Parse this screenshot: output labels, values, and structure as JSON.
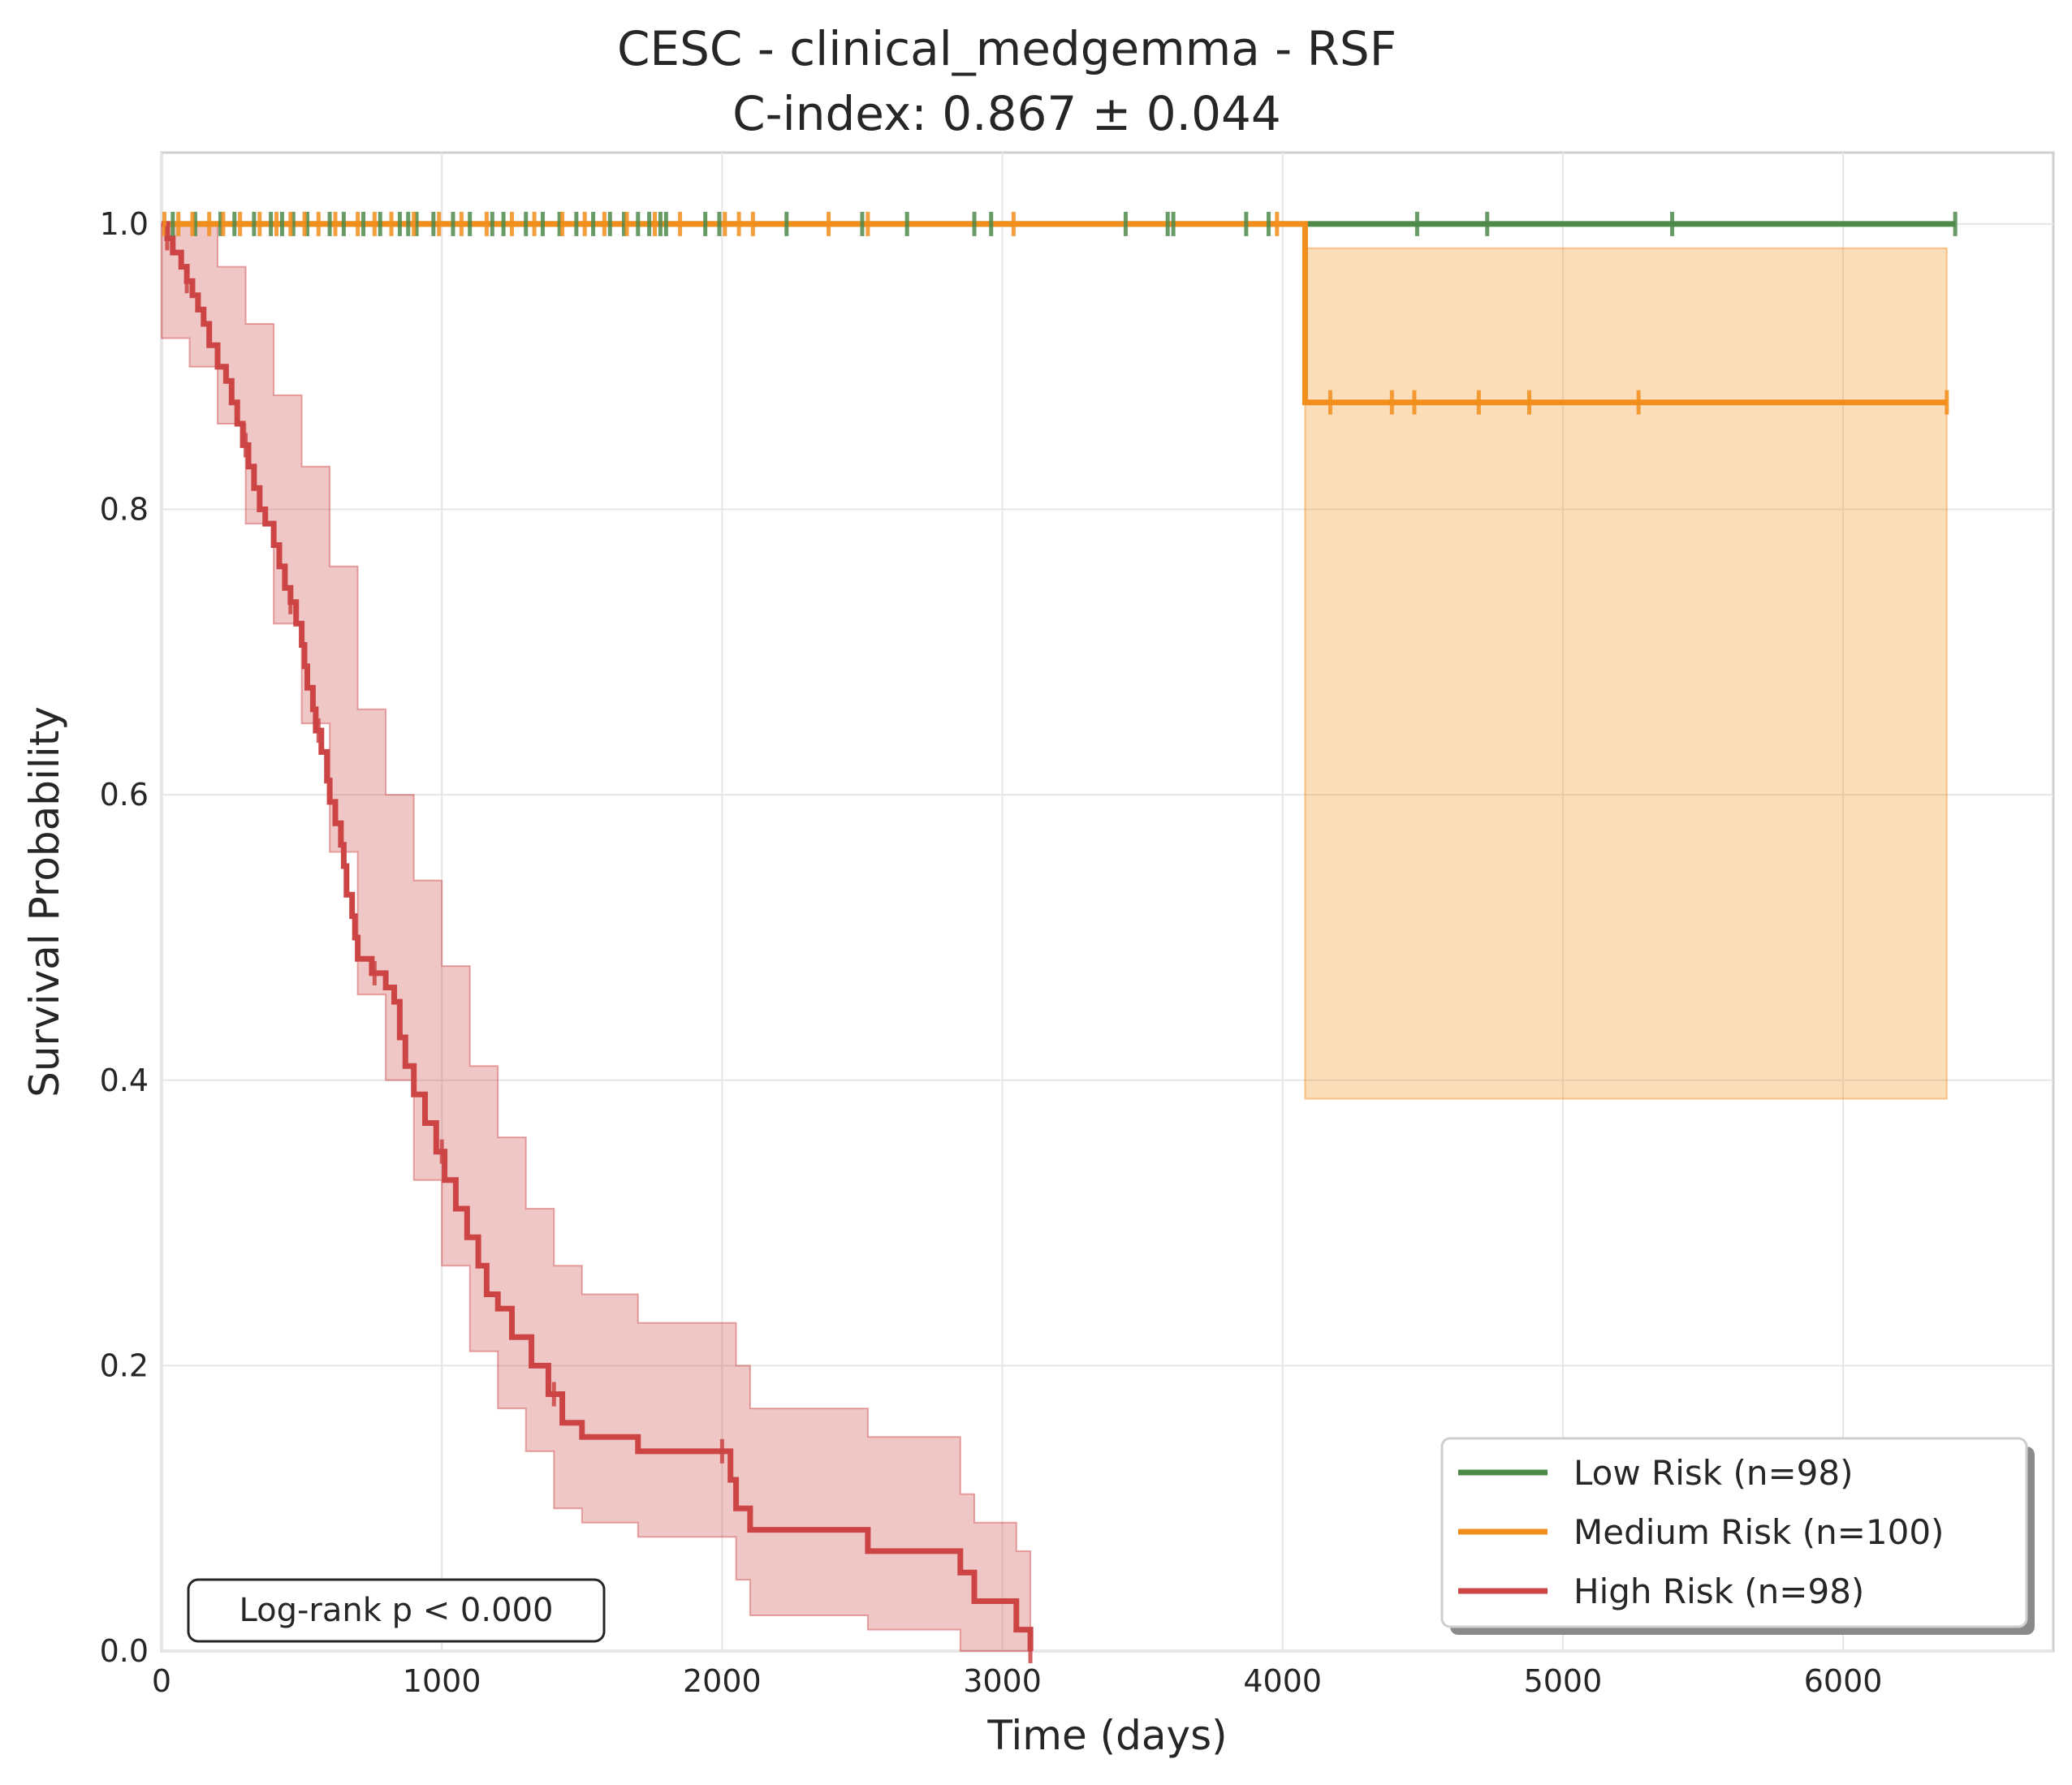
{
  "chart_data": {
    "type": "line",
    "subtype": "kaplan-meier",
    "title": "CESC - clinical_medgemma - RSF",
    "subtitle": "C-index: 0.867 ± 0.044",
    "xlabel": "Time (days)",
    "ylabel": "Survival Probability",
    "xlim": [
      0,
      6750
    ],
    "ylim": [
      0,
      1.05
    ],
    "xticks": [
      0,
      1000,
      2000,
      3000,
      4000,
      5000,
      6000
    ],
    "xtick_labels": [
      "0",
      "1000",
      "2000",
      "3000",
      "4000",
      "5000",
      "6000"
    ],
    "yticks": [
      0.0,
      0.2,
      0.4,
      0.6,
      0.8,
      1.0
    ],
    "ytick_labels": [
      "0.0",
      "0.2",
      "0.4",
      "0.6",
      "0.8",
      "1.0"
    ],
    "grid": true,
    "legend_position": "lower-right",
    "annotation": "Log-rank p < 0.000",
    "series": [
      {
        "name": "Low Risk (n=98)",
        "color": "#4d8a4a",
        "steps": [
          [
            0,
            1.0
          ],
          [
            6400,
            1.0
          ]
        ],
        "ci_lower": [],
        "ci_upper": [],
        "censor_times": [
          40,
          120,
          210,
          260,
          330,
          390,
          430,
          470,
          520,
          600,
          650,
          720,
          780,
          850,
          880,
          910,
          970,
          1040,
          1100,
          1180,
          1220,
          1300,
          1360,
          1420,
          1480,
          1540,
          1600,
          1650,
          1700,
          1740,
          1780,
          1800,
          1940,
          1990,
          2230,
          2500,
          2660,
          2900,
          2960,
          3440,
          3590,
          3610,
          3870,
          3950,
          4480,
          4730,
          5390,
          6400
        ]
      },
      {
        "name": "Medium Risk (n=100)",
        "color": "#f28e1c",
        "steps": [
          [
            0,
            1.0
          ],
          [
            4080,
            1.0
          ],
          [
            4080,
            0.875
          ],
          [
            6370,
            0.875
          ]
        ],
        "ci_lower": [
          [
            4080,
            0.387
          ],
          [
            6370,
            0.387
          ]
        ],
        "ci_upper": [
          [
            4080,
            0.983
          ],
          [
            6370,
            0.983
          ]
        ],
        "censor_times": [
          10,
          60,
          110,
          170,
          220,
          280,
          350,
          410,
          460,
          510,
          560,
          620,
          700,
          760,
          820,
          900,
          990,
          1070,
          1160,
          1250,
          1330,
          1430,
          1510,
          1580,
          1660,
          1760,
          1850,
          2010,
          2060,
          2110,
          2380,
          2520,
          3040,
          3980,
          4170,
          4390,
          4470,
          4700,
          4880,
          5270,
          6370
        ]
      },
      {
        "name": "High Risk (n=98)",
        "color": "#cc4444",
        "steps": [
          [
            0,
            1.0
          ],
          [
            20,
            0.99
          ],
          [
            40,
            0.98
          ],
          [
            70,
            0.97
          ],
          [
            90,
            0.96
          ],
          [
            110,
            0.95
          ],
          [
            130,
            0.94
          ],
          [
            150,
            0.93
          ],
          [
            170,
            0.915
          ],
          [
            200,
            0.9
          ],
          [
            230,
            0.89
          ],
          [
            250,
            0.875
          ],
          [
            270,
            0.86
          ],
          [
            290,
            0.845
          ],
          [
            310,
            0.83
          ],
          [
            330,
            0.815
          ],
          [
            350,
            0.8
          ],
          [
            370,
            0.79
          ],
          [
            400,
            0.775
          ],
          [
            420,
            0.76
          ],
          [
            440,
            0.745
          ],
          [
            460,
            0.735
          ],
          [
            480,
            0.72
          ],
          [
            500,
            0.705
          ],
          [
            510,
            0.69
          ],
          [
            520,
            0.675
          ],
          [
            540,
            0.66
          ],
          [
            550,
            0.645
          ],
          [
            570,
            0.63
          ],
          [
            590,
            0.61
          ],
          [
            600,
            0.595
          ],
          [
            620,
            0.58
          ],
          [
            640,
            0.565
          ],
          [
            650,
            0.55
          ],
          [
            660,
            0.53
          ],
          [
            680,
            0.515
          ],
          [
            690,
            0.5
          ],
          [
            700,
            0.485
          ],
          [
            750,
            0.475
          ],
          [
            800,
            0.465
          ],
          [
            830,
            0.455
          ],
          [
            850,
            0.43
          ],
          [
            870,
            0.41
          ],
          [
            900,
            0.39
          ],
          [
            940,
            0.37
          ],
          [
            980,
            0.35
          ],
          [
            1010,
            0.33
          ],
          [
            1050,
            0.31
          ],
          [
            1090,
            0.29
          ],
          [
            1130,
            0.27
          ],
          [
            1160,
            0.25
          ],
          [
            1200,
            0.24
          ],
          [
            1250,
            0.22
          ],
          [
            1320,
            0.2
          ],
          [
            1380,
            0.18
          ],
          [
            1430,
            0.16
          ],
          [
            1500,
            0.15
          ],
          [
            1700,
            0.14
          ],
          [
            2030,
            0.12
          ],
          [
            2050,
            0.1
          ],
          [
            2100,
            0.085
          ],
          [
            2520,
            0.07
          ],
          [
            2850,
            0.055
          ],
          [
            2900,
            0.035
          ],
          [
            3050,
            0.015
          ],
          [
            3100,
            0.0
          ]
        ],
        "ci_lower": [
          [
            0,
            0.92
          ],
          [
            100,
            0.9
          ],
          [
            200,
            0.86
          ],
          [
            300,
            0.79
          ],
          [
            400,
            0.72
          ],
          [
            500,
            0.65
          ],
          [
            600,
            0.56
          ],
          [
            700,
            0.46
          ],
          [
            800,
            0.4
          ],
          [
            900,
            0.33
          ],
          [
            1000,
            0.27
          ],
          [
            1100,
            0.21
          ],
          [
            1200,
            0.17
          ],
          [
            1300,
            0.14
          ],
          [
            1400,
            0.1
          ],
          [
            1500,
            0.09
          ],
          [
            1700,
            0.08
          ],
          [
            2050,
            0.05
          ],
          [
            2100,
            0.025
          ],
          [
            2520,
            0.015
          ],
          [
            2850,
            0.0
          ],
          [
            3100,
            0.0
          ]
        ],
        "ci_upper": [
          [
            0,
            1.0
          ],
          [
            100,
            1.0
          ],
          [
            200,
            0.97
          ],
          [
            300,
            0.93
          ],
          [
            400,
            0.88
          ],
          [
            500,
            0.83
          ],
          [
            600,
            0.76
          ],
          [
            700,
            0.66
          ],
          [
            800,
            0.6
          ],
          [
            900,
            0.54
          ],
          [
            1000,
            0.48
          ],
          [
            1100,
            0.41
          ],
          [
            1200,
            0.36
          ],
          [
            1300,
            0.31
          ],
          [
            1400,
            0.27
          ],
          [
            1500,
            0.25
          ],
          [
            1700,
            0.23
          ],
          [
            2050,
            0.2
          ],
          [
            2100,
            0.17
          ],
          [
            2520,
            0.15
          ],
          [
            2850,
            0.11
          ],
          [
            2900,
            0.09
          ],
          [
            3050,
            0.07
          ],
          [
            3100,
            0.07
          ]
        ],
        "censor_times": [
          20,
          90,
          300,
          460,
          560,
          760,
          1000,
          1400,
          2000,
          3100
        ]
      }
    ]
  }
}
